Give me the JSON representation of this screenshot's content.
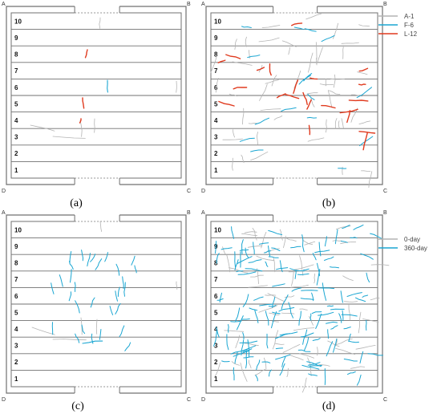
{
  "colors": {
    "frame": "#707070",
    "grey_crack": "#b4b4b4",
    "blue_crack": "#1aa6d2",
    "red_crack": "#e03a1e"
  },
  "corners": [
    "A",
    "B",
    "C",
    "D"
  ],
  "row_labels": [
    "1",
    "2",
    "3",
    "4",
    "5",
    "6",
    "7",
    "8",
    "9",
    "10"
  ],
  "panels": [
    {
      "id": "a",
      "caption": "(a)"
    },
    {
      "id": "b",
      "caption": "(b)"
    },
    {
      "id": "c",
      "caption": "(c)"
    },
    {
      "id": "d",
      "caption": "(d)"
    }
  ],
  "legends": [
    {
      "panel": "b",
      "entries": [
        {
          "label": "A-1",
          "color_key": "grey_crack"
        },
        {
          "label": "F-6",
          "color_key": "blue_crack"
        },
        {
          "label": "L-12",
          "color_key": "red_crack"
        }
      ]
    },
    {
      "panel": "d",
      "entries": [
        {
          "label": "0-day",
          "color_key": "grey_crack"
        },
        {
          "label": "360-day",
          "color_key": "blue_crack"
        }
      ]
    }
  ]
}
